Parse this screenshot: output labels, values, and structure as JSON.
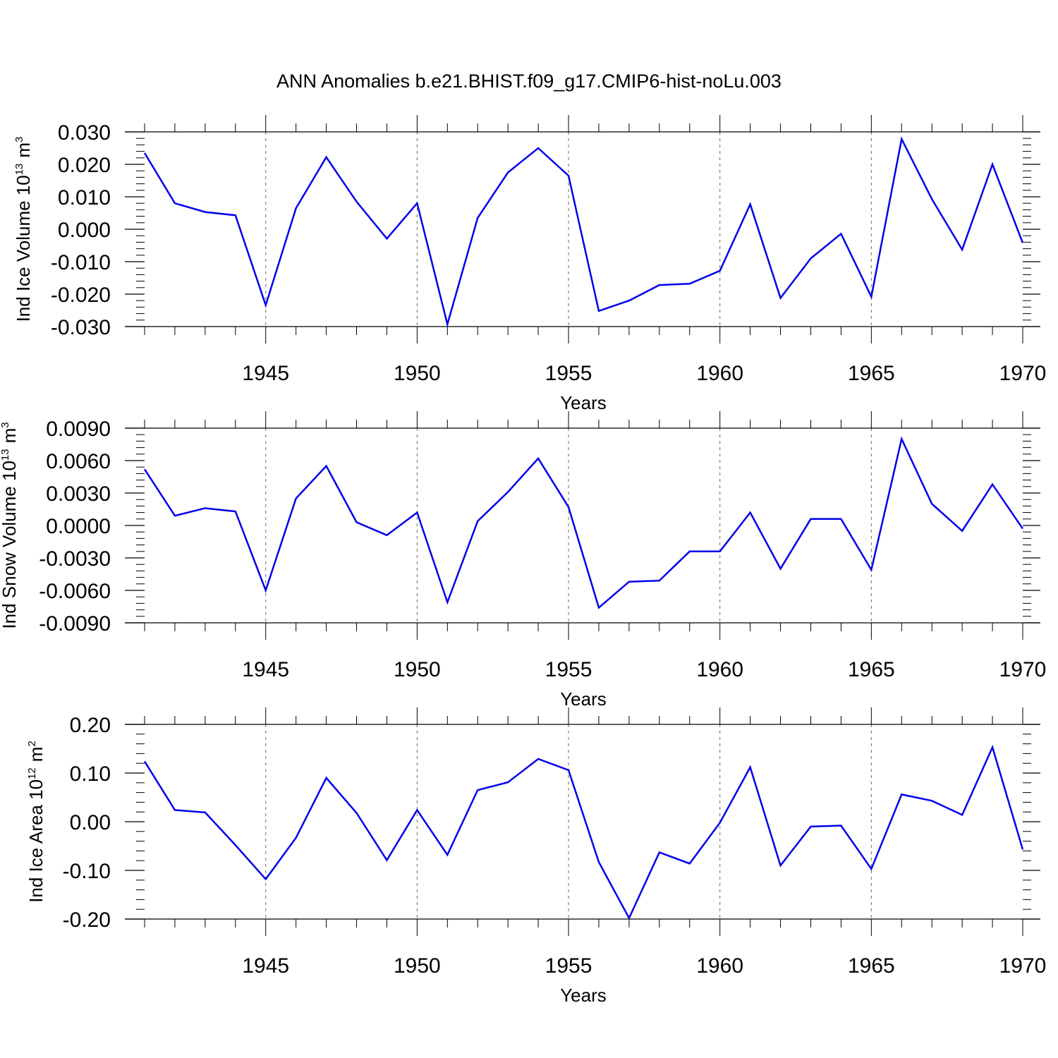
{
  "title": "ANN Anomalies b.e21.BHIST.f09_g17.CMIP6-hist-noLu.003",
  "colors": {
    "line": "#0000ee",
    "axis": "#000000",
    "grid": "#666666",
    "background": "#ffffff"
  },
  "chart_data": [
    {
      "type": "line",
      "ylabel": "Ind Ice Volume 10",
      "ylabel_exp": "13",
      "ylabel_unit": "m",
      "ylabel_unit_exp": "3",
      "xlabel": "Years",
      "xlim": [
        1941,
        1970
      ],
      "ylim": [
        -0.03,
        0.03
      ],
      "yticks": [
        -0.03,
        -0.02,
        -0.01,
        0.0,
        0.01,
        0.02,
        0.03
      ],
      "ytick_labels": [
        "-0.030",
        "-0.020",
        "-0.010",
        "0.000",
        "0.010",
        "0.020",
        "0.030"
      ],
      "xticks": [
        1945,
        1950,
        1955,
        1960,
        1965,
        1970
      ],
      "xtick_labels": [
        "1945",
        "1950",
        "1955",
        "1960",
        "1965",
        "1970"
      ],
      "x": [
        1941,
        1942,
        1943,
        1944,
        1945,
        1946,
        1947,
        1948,
        1949,
        1950,
        1951,
        1952,
        1953,
        1954,
        1955,
        1956,
        1957,
        1958,
        1959,
        1960,
        1961,
        1962,
        1963,
        1964,
        1965,
        1966,
        1967,
        1968,
        1969,
        1970
      ],
      "series": [
        {
          "name": "Ind Ice Volume",
          "values": [
            0.0235,
            0.008,
            0.0053,
            0.0043,
            -0.0234,
            0.0065,
            0.0222,
            0.0085,
            -0.0029,
            0.008,
            -0.0293,
            0.0035,
            0.0175,
            0.025,
            0.0165,
            -0.0252,
            -0.022,
            -0.0172,
            -0.0168,
            -0.0128,
            0.0077,
            -0.0212,
            -0.009,
            -0.0014,
            -0.0208,
            0.0278,
            0.0093,
            -0.0063,
            0.02,
            -0.0042
          ]
        }
      ]
    },
    {
      "type": "line",
      "ylabel": "Ind Snow Volume 10",
      "ylabel_exp": "13",
      "ylabel_unit": "m",
      "ylabel_unit_exp": "3",
      "xlabel": "Years",
      "xlim": [
        1941,
        1970
      ],
      "ylim": [
        -0.009,
        0.009
      ],
      "yticks": [
        -0.009,
        -0.006,
        -0.003,
        0.0,
        0.003,
        0.006,
        0.009
      ],
      "ytick_labels": [
        "-0.0090",
        "-0.0060",
        "-0.0030",
        "0.0000",
        "0.0030",
        "0.0060",
        "0.0090"
      ],
      "xticks": [
        1945,
        1950,
        1955,
        1960,
        1965,
        1970
      ],
      "xtick_labels": [
        "1945",
        "1950",
        "1955",
        "1960",
        "1965",
        "1970"
      ],
      "x": [
        1941,
        1942,
        1943,
        1944,
        1945,
        1946,
        1947,
        1948,
        1949,
        1950,
        1951,
        1952,
        1953,
        1954,
        1955,
        1956,
        1957,
        1958,
        1959,
        1960,
        1961,
        1962,
        1963,
        1964,
        1965,
        1966,
        1967,
        1968,
        1969,
        1970
      ],
      "series": [
        {
          "name": "Ind Snow Volume",
          "values": [
            0.0052,
            0.0009,
            0.0016,
            0.0013,
            -0.006,
            0.0025,
            0.0055,
            0.0003,
            -0.0009,
            0.0012,
            -0.0071,
            0.0004,
            0.0031,
            0.0062,
            0.0017,
            -0.0076,
            -0.0052,
            -0.0051,
            -0.0024,
            -0.0024,
            0.0012,
            -0.004,
            0.0006,
            0.0006,
            -0.0041,
            0.008,
            0.002,
            -0.0005,
            0.0038,
            -0.0003
          ]
        }
      ]
    },
    {
      "type": "line",
      "ylabel": "Ind Ice Area 10",
      "ylabel_exp": "12",
      "ylabel_unit": "m",
      "ylabel_unit_exp": "2",
      "xlabel": "Years",
      "xlim": [
        1941,
        1970
      ],
      "ylim": [
        -0.2,
        0.2
      ],
      "yticks": [
        -0.2,
        -0.1,
        0.0,
        0.1,
        0.2
      ],
      "ytick_labels": [
        "-0.20",
        "-0.10",
        "0.00",
        "0.10",
        "0.20"
      ],
      "xticks": [
        1945,
        1950,
        1955,
        1960,
        1965,
        1970
      ],
      "xtick_labels": [
        "1945",
        "1950",
        "1955",
        "1960",
        "1965",
        "1970"
      ],
      "x": [
        1941,
        1942,
        1943,
        1944,
        1945,
        1946,
        1947,
        1948,
        1949,
        1950,
        1951,
        1952,
        1953,
        1954,
        1955,
        1956,
        1957,
        1958,
        1959,
        1960,
        1961,
        1962,
        1963,
        1964,
        1965,
        1966,
        1967,
        1968,
        1969,
        1970
      ],
      "series": [
        {
          "name": "Ind Ice Area",
          "values": [
            0.124,
            0.024,
            0.019,
            -0.048,
            -0.118,
            -0.033,
            0.09,
            0.018,
            -0.079,
            0.024,
            -0.068,
            0.065,
            0.081,
            0.129,
            0.106,
            -0.083,
            -0.198,
            -0.063,
            -0.086,
            -0.002,
            0.112,
            -0.09,
            -0.01,
            -0.008,
            -0.097,
            0.056,
            0.043,
            0.014,
            0.153,
            -0.057
          ]
        }
      ]
    }
  ]
}
